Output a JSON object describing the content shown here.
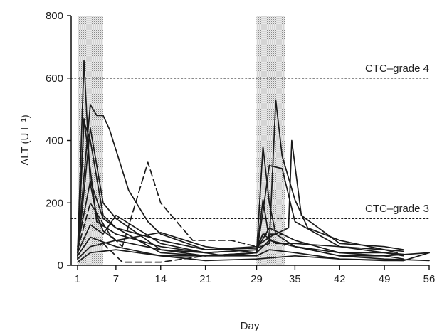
{
  "chart_data": {
    "type": "line",
    "xlabel": "Day",
    "ylabel": "ALT (U l⁻¹)",
    "xlim": [
      0,
      56
    ],
    "ylim": [
      0,
      800
    ],
    "xticks": [
      "1",
      "7",
      "14",
      "21",
      "29",
      "35",
      "42",
      "49",
      "56"
    ],
    "yticks": [
      "0",
      "200",
      "400",
      "600",
      "800"
    ],
    "xtick_values": [
      1,
      7,
      14,
      21,
      29,
      35,
      42,
      49,
      56
    ],
    "ytick_values": [
      0,
      200,
      400,
      600,
      800
    ],
    "grid": false,
    "shaded_periods": [
      [
        1,
        5
      ],
      [
        29,
        33.5
      ]
    ],
    "reference_lines": [
      {
        "label": "CTC–grade 4",
        "y": 600
      },
      {
        "label": "CTC–grade 3",
        "y": 150
      }
    ],
    "series": [
      {
        "style": "solid",
        "points": [
          [
            1,
            40
          ],
          [
            2,
            655
          ],
          [
            3,
            260
          ],
          [
            4,
            160
          ],
          [
            5,
            110
          ],
          [
            7,
            80
          ],
          [
            14,
            50
          ],
          [
            21,
            40
          ],
          [
            24,
            30
          ],
          [
            29,
            40
          ],
          [
            30,
            380
          ],
          [
            31,
            200
          ],
          [
            32,
            100
          ],
          [
            35,
            60
          ],
          [
            42,
            40
          ],
          [
            49,
            30
          ],
          [
            52,
            20
          ]
        ]
      },
      {
        "style": "solid",
        "points": [
          [
            1,
            30
          ],
          [
            2,
            470
          ],
          [
            4,
            140
          ],
          [
            7,
            100
          ],
          [
            14,
            60
          ],
          [
            21,
            40
          ],
          [
            29,
            50
          ],
          [
            30,
            100
          ],
          [
            32,
            70
          ],
          [
            35,
            70
          ],
          [
            42,
            60
          ],
          [
            49,
            40
          ],
          [
            52,
            35
          ]
        ]
      },
      {
        "style": "solid",
        "points": [
          [
            1,
            20
          ],
          [
            2,
            460
          ],
          [
            3,
            400
          ],
          [
            5,
            160
          ],
          [
            7,
            120
          ],
          [
            14,
            40
          ],
          [
            21,
            30
          ],
          [
            29,
            40
          ],
          [
            30,
            210
          ],
          [
            31,
            80
          ],
          [
            35,
            60
          ],
          [
            42,
            30
          ],
          [
            49,
            30
          ],
          [
            56,
            40
          ]
        ]
      },
      {
        "style": "solid",
        "points": [
          [
            1,
            50
          ],
          [
            3,
            515
          ],
          [
            4,
            480
          ],
          [
            5,
            480
          ],
          [
            6,
            435
          ],
          [
            9,
            240
          ],
          [
            12,
            140
          ],
          [
            14,
            100
          ],
          [
            21,
            50
          ],
          [
            29,
            55
          ],
          [
            31,
            70
          ],
          [
            32,
            530
          ],
          [
            33,
            350
          ],
          [
            35,
            210
          ],
          [
            37,
            120
          ],
          [
            42,
            80
          ],
          [
            49,
            50
          ],
          [
            51,
            40
          ]
        ]
      },
      {
        "style": "solid",
        "points": [
          [
            1,
            30
          ],
          [
            3,
            440
          ],
          [
            5,
            200
          ],
          [
            7,
            150
          ],
          [
            14,
            50
          ],
          [
            21,
            30
          ],
          [
            29,
            40
          ],
          [
            30,
            170
          ],
          [
            31,
            320
          ],
          [
            33,
            310
          ],
          [
            35,
            140
          ],
          [
            42,
            60
          ],
          [
            49,
            50
          ],
          [
            52,
            45
          ]
        ]
      },
      {
        "style": "solid",
        "points": [
          [
            1,
            60
          ],
          [
            3,
            270
          ],
          [
            5,
            150
          ],
          [
            7,
            120
          ],
          [
            14,
            80
          ],
          [
            21,
            50
          ],
          [
            29,
            60
          ],
          [
            31,
            90
          ],
          [
            34,
            120
          ],
          [
            34.5,
            400
          ],
          [
            36,
            160
          ],
          [
            42,
            70
          ],
          [
            49,
            60
          ],
          [
            52,
            50
          ]
        ]
      },
      {
        "style": "solid",
        "points": [
          [
            1,
            40
          ],
          [
            3,
            130
          ],
          [
            5,
            100
          ],
          [
            7,
            160
          ],
          [
            14,
            70
          ],
          [
            21,
            40
          ],
          [
            29,
            50
          ],
          [
            31,
            120
          ],
          [
            35,
            80
          ],
          [
            42,
            40
          ],
          [
            49,
            40
          ],
          [
            52,
            30
          ]
        ]
      },
      {
        "style": "solid",
        "points": [
          [
            1,
            20
          ],
          [
            3,
            60
          ],
          [
            7,
            80
          ],
          [
            14,
            105
          ],
          [
            21,
            60
          ],
          [
            29,
            40
          ],
          [
            31,
            80
          ],
          [
            35,
            60
          ],
          [
            42,
            30
          ],
          [
            49,
            20
          ],
          [
            56,
            15
          ]
        ]
      },
      {
        "style": "solid",
        "points": [
          [
            1,
            30
          ],
          [
            3,
            90
          ],
          [
            7,
            60
          ],
          [
            14,
            30
          ],
          [
            21,
            30
          ],
          [
            29,
            30
          ],
          [
            31,
            50
          ],
          [
            35,
            40
          ],
          [
            42,
            20
          ],
          [
            49,
            15
          ],
          [
            52,
            15
          ]
        ]
      },
      {
        "style": "solid",
        "points": [
          [
            1,
            10
          ],
          [
            3,
            40
          ],
          [
            7,
            50
          ],
          [
            14,
            30
          ],
          [
            21,
            15
          ],
          [
            29,
            20
          ],
          [
            35,
            30
          ],
          [
            42,
            20
          ],
          [
            52,
            15
          ],
          [
            56,
            40
          ]
        ]
      },
      {
        "style": "dashed",
        "points": [
          [
            1,
            50
          ],
          [
            3,
            200
          ],
          [
            6,
            100
          ],
          [
            8,
            60
          ],
          [
            12,
            330
          ],
          [
            14,
            200
          ],
          [
            19,
            80
          ],
          [
            25,
            80
          ],
          [
            29,
            60
          ],
          [
            30,
            100
          ],
          [
            33,
            100
          ]
        ]
      },
      {
        "style": "dashed",
        "points": [
          [
            5,
            70
          ],
          [
            7,
            30
          ],
          [
            8,
            10
          ],
          [
            14,
            10
          ],
          [
            21,
            30
          ],
          [
            29,
            40
          ]
        ]
      }
    ]
  }
}
